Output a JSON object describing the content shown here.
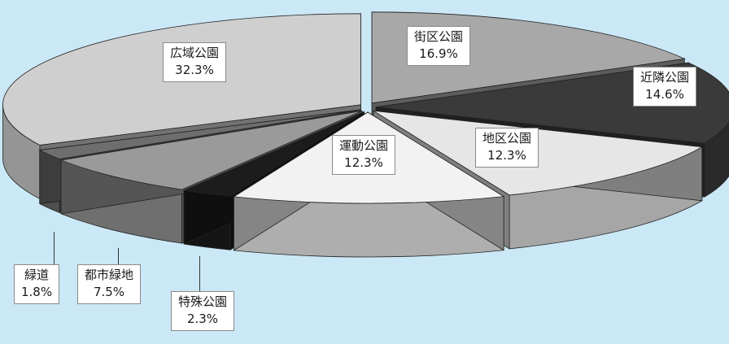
{
  "chart_data": {
    "type": "pie",
    "style": "3d-exploded",
    "title": "",
    "slices": [
      {
        "name": "街区公園",
        "percent": 16.9,
        "label": "16.9%",
        "color": "#a8a8a8"
      },
      {
        "name": "近隣公園",
        "percent": 14.6,
        "label": "14.6%",
        "color": "#3a3a3a"
      },
      {
        "name": "地区公園",
        "percent": 12.3,
        "label": "12.3%",
        "color": "#e6e6e6"
      },
      {
        "name": "運動公園",
        "percent": 12.3,
        "label": "12.3%",
        "color": "#f2f2f2"
      },
      {
        "name": "特殊公園",
        "percent": 2.3,
        "label": "2.3%",
        "color": "#1c1c1c"
      },
      {
        "name": "都市緑地",
        "percent": 7.5,
        "label": "7.5%",
        "color": "#9a9a9a"
      },
      {
        "name": "緑道",
        "percent": 1.8,
        "label": "1.8%",
        "color": "#6e6e6e"
      },
      {
        "name": "広域公園",
        "percent": 32.3,
        "label": "32.3%",
        "color": "#cfcfcf"
      }
    ]
  }
}
